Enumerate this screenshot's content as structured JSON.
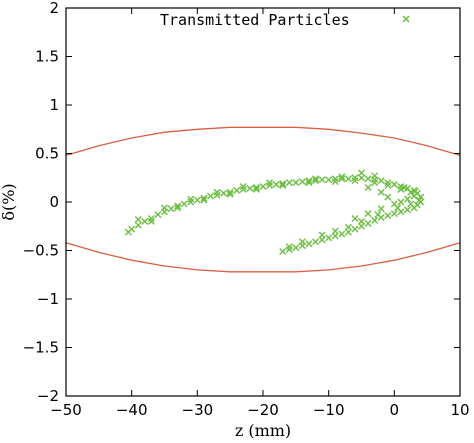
{
  "chart_data": {
    "type": "scatter",
    "xlabel": "z (mm)",
    "ylabel": "δ(%)",
    "xlim": [
      -50,
      10
    ],
    "ylim": [
      -2,
      2
    ],
    "x_ticks": [
      -50,
      -40,
      -30,
      -20,
      -10,
      0,
      10
    ],
    "y_ticks": [
      -2,
      -1.5,
      -1,
      -0.5,
      0,
      0.5,
      1,
      1.5,
      2
    ],
    "x_tick_labels": [
      "−50",
      "−40",
      "−30",
      "−20",
      "−10",
      "0",
      "10"
    ],
    "y_tick_labels": [
      "−2",
      "−1.5",
      "−1",
      "−0.5",
      "0",
      "0.5",
      "1",
      "1.5",
      "2"
    ],
    "grid": false,
    "legend_position": "top-right",
    "series": [
      {
        "name": "Transmitted Particles",
        "marker": "x",
        "color": "#6abf40",
        "points": [
          [
            -40.5,
            -0.31
          ],
          [
            -40,
            -0.28
          ],
          [
            -39,
            -0.24
          ],
          [
            -38,
            -0.2
          ],
          [
            -37,
            -0.17
          ],
          [
            -36,
            -0.13
          ],
          [
            -35,
            -0.1
          ],
          [
            -34,
            -0.07
          ],
          [
            -33,
            -0.04
          ],
          [
            -32,
            -0.02
          ],
          [
            -31,
            0.0
          ],
          [
            -30,
            0.02
          ],
          [
            -29,
            0.04
          ],
          [
            -28,
            0.06
          ],
          [
            -27,
            0.07
          ],
          [
            -26,
            0.09
          ],
          [
            -25,
            0.1
          ],
          [
            -24,
            0.12
          ],
          [
            -23,
            0.13
          ],
          [
            -22,
            0.14
          ],
          [
            -21,
            0.15
          ],
          [
            -20,
            0.16
          ],
          [
            -19,
            0.17
          ],
          [
            -18,
            0.18
          ],
          [
            -17,
            0.19
          ],
          [
            -16,
            0.2
          ],
          [
            -15,
            0.2
          ],
          [
            -14,
            0.21
          ],
          [
            -13,
            0.22
          ],
          [
            -12,
            0.22
          ],
          [
            -11,
            0.23
          ],
          [
            -10,
            0.23
          ],
          [
            -9,
            0.24
          ],
          [
            -8,
            0.24
          ],
          [
            -7,
            0.24
          ],
          [
            -6,
            0.25
          ],
          [
            -5,
            0.25
          ],
          [
            -4,
            0.24
          ],
          [
            -3,
            0.23
          ],
          [
            -2,
            0.22
          ],
          [
            -1,
            0.2
          ],
          [
            0,
            0.18
          ],
          [
            1,
            0.16
          ],
          [
            2,
            0.14
          ],
          [
            3,
            0.12
          ],
          [
            3.5,
            0.09
          ],
          [
            4,
            0.05
          ],
          [
            4,
            0.0
          ],
          [
            3.5,
            -0.03
          ],
          [
            3,
            -0.06
          ],
          [
            2,
            -0.08
          ],
          [
            1,
            -0.1
          ],
          [
            0,
            -0.12
          ],
          [
            -1,
            -0.14
          ],
          [
            -2,
            -0.16
          ],
          [
            -3,
            -0.19
          ],
          [
            -4,
            -0.22
          ],
          [
            -5,
            -0.25
          ],
          [
            -6,
            -0.28
          ],
          [
            -7,
            -0.31
          ],
          [
            -8,
            -0.33
          ],
          [
            -9,
            -0.35
          ],
          [
            -10,
            -0.37
          ],
          [
            -11,
            -0.39
          ],
          [
            -12,
            -0.41
          ],
          [
            -13,
            -0.43
          ],
          [
            -14,
            -0.45
          ],
          [
            -15,
            -0.47
          ],
          [
            -16,
            -0.49
          ],
          [
            -17,
            -0.51
          ],
          [
            -37,
            -0.2
          ],
          [
            -33,
            -0.06
          ],
          [
            -29,
            0.02
          ],
          [
            -25,
            0.08
          ],
          [
            -21,
            0.13
          ],
          [
            -17,
            0.17
          ],
          [
            -13,
            0.2
          ],
          [
            -9,
            0.21
          ],
          [
            -6,
            0.22
          ],
          [
            -3,
            0.2
          ],
          [
            -1,
            0.17
          ],
          [
            1,
            0.13
          ],
          [
            2.5,
            0.1
          ],
          [
            3,
            0.06
          ],
          [
            2,
            0.03
          ],
          [
            0,
            -0.02
          ],
          [
            -2,
            -0.07
          ],
          [
            -4,
            -0.12
          ],
          [
            -6,
            -0.17
          ],
          [
            -2,
            0.1
          ],
          [
            -4,
            0.15
          ],
          [
            -1,
            0.05
          ],
          [
            1,
            0.0
          ],
          [
            -3,
            0.27
          ],
          [
            -5,
            0.3
          ],
          [
            -8,
            0.26
          ],
          [
            -12,
            0.24
          ],
          [
            -19,
            0.2
          ],
          [
            -23,
            0.16
          ],
          [
            -27,
            0.1
          ],
          [
            -31,
            0.03
          ],
          [
            -35,
            -0.06
          ],
          [
            -39,
            -0.18
          ],
          [
            -11,
            -0.34
          ],
          [
            -14,
            -0.41
          ],
          [
            -9,
            -0.3
          ],
          [
            -7,
            -0.26
          ],
          [
            -5,
            -0.2
          ],
          [
            -16,
            -0.46
          ],
          [
            -2.5,
            -0.13
          ],
          [
            0.5,
            -0.06
          ],
          [
            2.5,
            -0.02
          ],
          [
            3.8,
            0.02
          ],
          [
            3.2,
            0.11
          ],
          [
            1.5,
            0.15
          ]
        ]
      }
    ],
    "annotations": [
      {
        "type": "line",
        "color": "#d96040",
        "points": [
          [
            -50,
            0.48
          ],
          [
            -45,
            0.58
          ],
          [
            -40,
            0.66
          ],
          [
            -35,
            0.72
          ],
          [
            -30,
            0.75
          ],
          [
            -25,
            0.77
          ],
          [
            -20,
            0.77
          ],
          [
            -15,
            0.77
          ],
          [
            -10,
            0.75
          ],
          [
            -5,
            0.71
          ],
          [
            0,
            0.66
          ],
          [
            5,
            0.58
          ],
          [
            10,
            0.48
          ]
        ]
      },
      {
        "type": "line",
        "color": "#d96040",
        "points": [
          [
            -50,
            -0.42
          ],
          [
            -45,
            -0.52
          ],
          [
            -40,
            -0.6
          ],
          [
            -35,
            -0.66
          ],
          [
            -30,
            -0.7
          ],
          [
            -25,
            -0.72
          ],
          [
            -20,
            -0.72
          ],
          [
            -15,
            -0.72
          ],
          [
            -10,
            -0.7
          ],
          [
            -5,
            -0.66
          ],
          [
            0,
            -0.6
          ],
          [
            5,
            -0.52
          ],
          [
            10,
            -0.42
          ]
        ]
      }
    ]
  }
}
